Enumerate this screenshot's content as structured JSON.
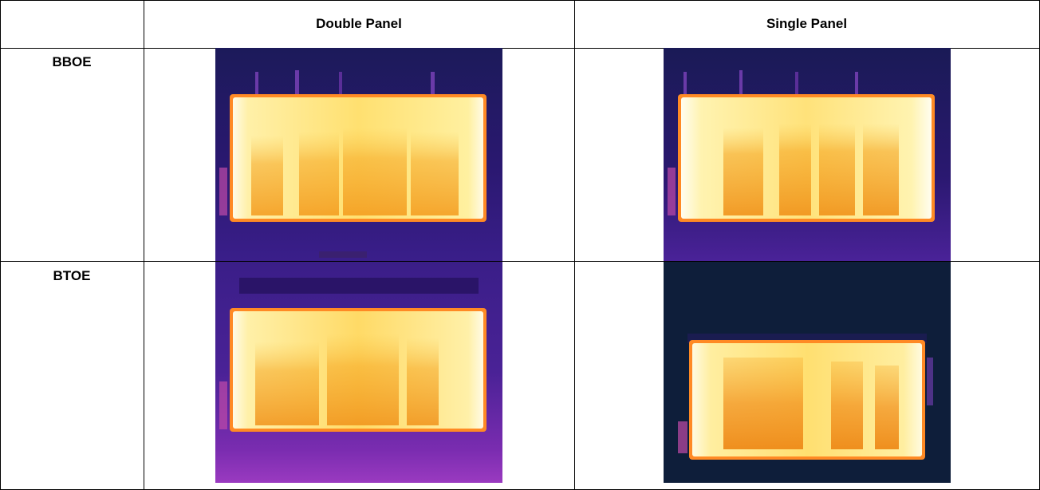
{
  "table": {
    "headers": [
      "",
      "Double Panel",
      "Single Panel"
    ],
    "rows": [
      {
        "label": "BBOE",
        "double_panel_image": "thermal image of double panel radiator (BBOE)",
        "single_panel_image": "thermal image of single panel radiator (BBOE)"
      },
      {
        "label": "BTOE",
        "double_panel_image": "thermal image of double panel radiator (BTOE)",
        "single_panel_image": "thermal image of single panel radiator (BTOE)"
      }
    ]
  },
  "colors": {
    "thermal_background_purple": "#2a1466",
    "thermal_background_dark": "#0e1e3a",
    "thermal_hot": "#fff6c8",
    "thermal_warm": "#f7b42a",
    "thermal_edge": "#ff7a1a"
  }
}
